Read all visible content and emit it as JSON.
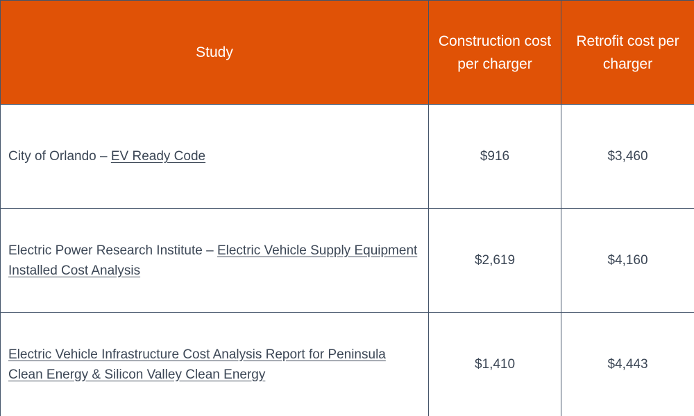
{
  "table": {
    "headers": {
      "study": "Study",
      "construction": "Construction cost per charger",
      "retrofit": "Retrofit cost per charger"
    },
    "rows": [
      {
        "prefix": "City of Orlando – ",
        "link": "EV Ready Code",
        "construction": "$916",
        "retrofit": "$3,460"
      },
      {
        "prefix": "Electric Power Research Institute – ",
        "link": "Electric Vehicle Supply Equipment Installed Cost Analysis",
        "construction": "$2,619",
        "retrofit": "$4,160"
      },
      {
        "prefix": "",
        "link": "Electric Vehicle Infrastructure Cost Analysis Report for Peninsula Clean Energy & Silicon Valley Clean Energy",
        "construction": "$1,410",
        "retrofit": "$4,443"
      }
    ]
  },
  "colors": {
    "header_bg": "#e05206",
    "header_text": "#ffffff",
    "body_text": "#3b4655",
    "border": "#44546a"
  }
}
